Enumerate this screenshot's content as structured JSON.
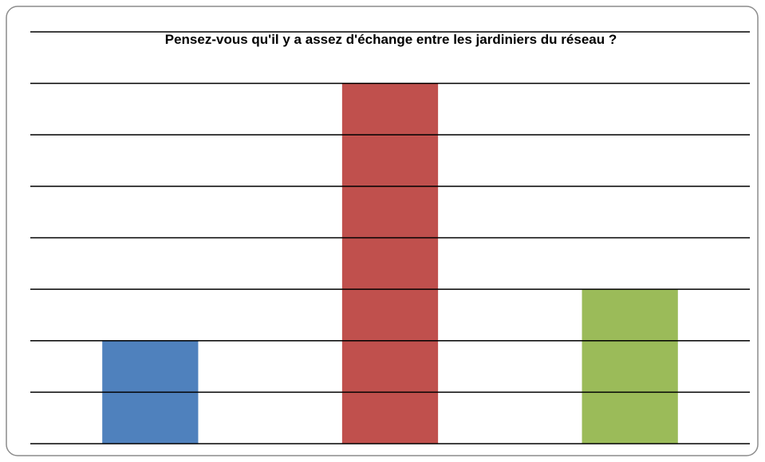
{
  "chart_data": {
    "type": "bar",
    "title": "Pensez-vous qu'il y a assez d'échange entre les jardiniers du réseau ?",
    "categories": [
      null,
      null,
      null
    ],
    "values": [
      2,
      7,
      3
    ],
    "colors": [
      "#4f81bd",
      "#c0504d",
      "#9bbb59"
    ],
    "ylim": [
      0,
      8
    ],
    "yticks": [
      0,
      1,
      2,
      3,
      4,
      5,
      6,
      7,
      8
    ],
    "grid": true
  }
}
